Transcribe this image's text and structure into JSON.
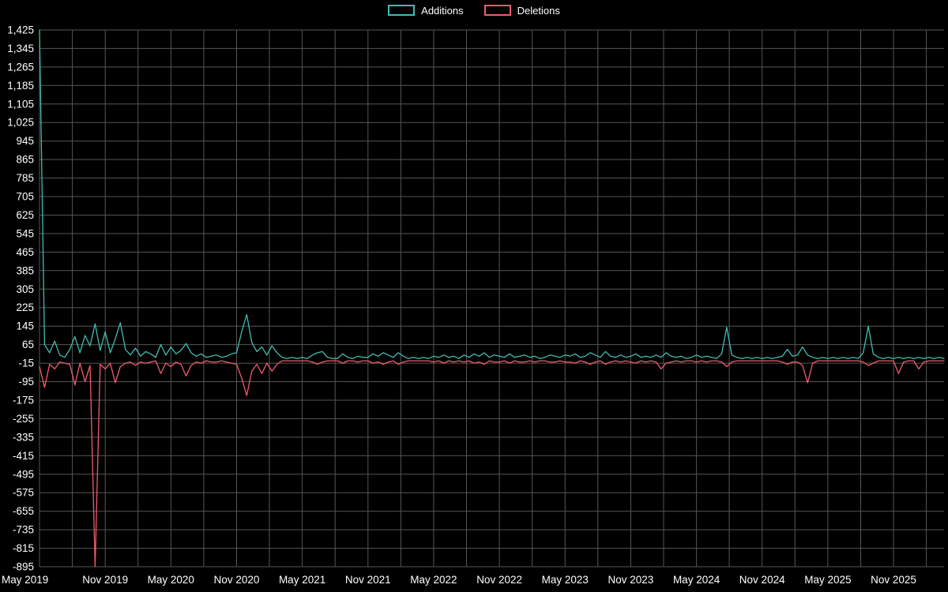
{
  "legend": {
    "additions_label": "Additions",
    "deletions_label": "Deletions"
  },
  "colors": {
    "background": "#000000",
    "grid": "#565656",
    "text": "#ffffff",
    "additions": "#3fbdb2",
    "deletions": "#f15b6c"
  },
  "chart_data": {
    "type": "line",
    "title": "",
    "xlabel": "",
    "ylabel": "",
    "grid": true,
    "legend_position": "top-center",
    "ylim": [
      -895,
      1425
    ],
    "y_ticks": [
      1425,
      1345,
      1265,
      1185,
      1105,
      1025,
      945,
      865,
      785,
      705,
      625,
      545,
      465,
      385,
      305,
      225,
      145,
      65,
      -15,
      -95,
      -175,
      -255,
      -335,
      -415,
      -495,
      -575,
      -655,
      -735,
      -815,
      -895
    ],
    "x_tick_labels": [
      "May 2019",
      "Nov 2019",
      "May 2020",
      "Nov 2020",
      "May 2021",
      "Nov 2021",
      "May 2022",
      "Nov 2022",
      "May 2023",
      "Nov 2023",
      "May 2024",
      "Nov 2024",
      "May 2025",
      "Nov 2025"
    ],
    "x_tick_step": 13,
    "n_points": 180,
    "series": [
      {
        "name": "Additions",
        "color": "#3fbdb2",
        "values": [
          1425,
          65,
          30,
          80,
          20,
          10,
          45,
          100,
          30,
          105,
          60,
          155,
          40,
          120,
          30,
          90,
          160,
          45,
          20,
          50,
          15,
          35,
          25,
          10,
          65,
          20,
          55,
          25,
          40,
          70,
          30,
          15,
          25,
          10,
          15,
          20,
          10,
          15,
          25,
          30,
          120,
          195,
          75,
          35,
          55,
          20,
          60,
          30,
          10,
          5,
          10,
          5,
          10,
          5,
          20,
          30,
          35,
          10,
          5,
          5,
          25,
          10,
          5,
          15,
          10,
          10,
          25,
          15,
          30,
          20,
          10,
          30,
          15,
          5,
          10,
          5,
          10,
          5,
          15,
          10,
          20,
          10,
          15,
          5,
          20,
          10,
          25,
          15,
          30,
          10,
          20,
          15,
          10,
          25,
          10,
          15,
          20,
          10,
          15,
          5,
          10,
          20,
          15,
          10,
          20,
          15,
          25,
          10,
          15,
          30,
          20,
          10,
          35,
          15,
          10,
          20,
          10,
          15,
          25,
          10,
          15,
          10,
          20,
          10,
          30,
          15,
          10,
          15,
          5,
          10,
          20,
          10,
          15,
          10,
          5,
          25,
          140,
          20,
          10,
          5,
          10,
          5,
          10,
          5,
          10,
          5,
          10,
          15,
          45,
          15,
          20,
          55,
          20,
          10,
          5,
          10,
          5,
          10,
          5,
          10,
          5,
          10,
          5,
          30,
          145,
          25,
          10,
          5,
          10,
          5,
          10,
          5,
          10,
          5,
          10,
          5,
          10,
          5,
          10,
          5
        ]
      },
      {
        "name": "Deletions",
        "color": "#f15b6c",
        "values": [
          -30,
          -120,
          -20,
          -40,
          -10,
          -15,
          -20,
          -110,
          -15,
          -95,
          -25,
          -895,
          -20,
          -40,
          -15,
          -100,
          -30,
          -15,
          -10,
          -25,
          -10,
          -15,
          -10,
          -5,
          -60,
          -15,
          -30,
          -10,
          -20,
          -70,
          -25,
          -10,
          -15,
          -5,
          -10,
          -10,
          -5,
          -10,
          -15,
          -20,
          -80,
          -155,
          -50,
          -20,
          -60,
          -15,
          -50,
          -20,
          -5,
          -5,
          -5,
          -5,
          -5,
          -5,
          -10,
          -20,
          -10,
          -5,
          -5,
          -5,
          -15,
          -5,
          -5,
          -10,
          -5,
          -5,
          -15,
          -10,
          -20,
          -10,
          -5,
          -20,
          -10,
          -5,
          -5,
          -5,
          -5,
          -5,
          -10,
          -5,
          -15,
          -5,
          -10,
          -5,
          -10,
          -5,
          -15,
          -10,
          -20,
          -5,
          -10,
          -10,
          -5,
          -15,
          -5,
          -10,
          -10,
          -5,
          -10,
          -5,
          -5,
          -10,
          -10,
          -5,
          -10,
          -10,
          -15,
          -5,
          -10,
          -20,
          -10,
          -5,
          -20,
          -10,
          -5,
          -10,
          -5,
          -10,
          -15,
          -5,
          -10,
          -5,
          -10,
          -40,
          -15,
          -10,
          -5,
          -10,
          -5,
          -5,
          -10,
          -5,
          -10,
          -5,
          -5,
          -10,
          -30,
          -10,
          -5,
          -5,
          -5,
          -5,
          -5,
          -5,
          -5,
          -5,
          -5,
          -10,
          -20,
          -10,
          -10,
          -25,
          -100,
          -15,
          -5,
          -5,
          -5,
          -5,
          -5,
          -5,
          -5,
          -5,
          -5,
          -10,
          -25,
          -15,
          -5,
          -5,
          -5,
          -5,
          -60,
          -10,
          -5,
          -5,
          -40,
          -10,
          -5,
          -5,
          -5,
          -5
        ]
      }
    ]
  }
}
